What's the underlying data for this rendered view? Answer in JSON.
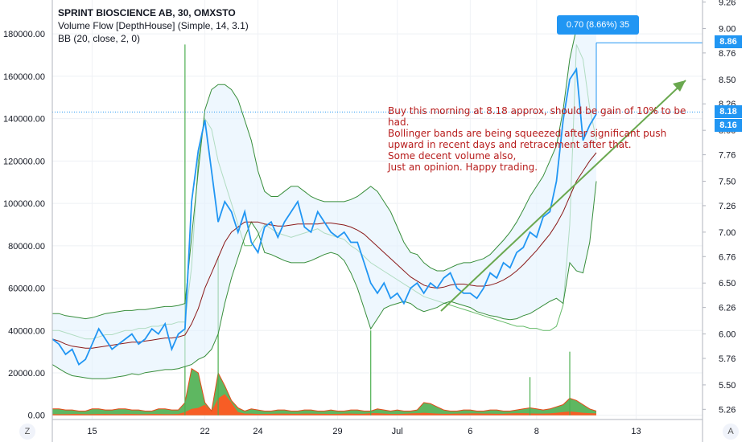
{
  "legend": {
    "title": "SPRINT BIOSCIENCE AB, 30, OMXSTO",
    "line2": "Volume Flow [DepthHouse] (Simple, 14, 3.1)",
    "line3": "BB (20, close, 2, 0)"
  },
  "measure_badge": "0.70 (8.66%) 35",
  "price_tags": {
    "high": "8.86",
    "mid": "8.18",
    "last": "8.16"
  },
  "annotation": "Buy this morning at 8.18 approx, should be gain of 10% to be had.\nBollinger bands are being squeezed after significant push\nupward in recent days and retracement after that.\nSome decent volume also,\nJust an opinion. Happy trading.",
  "corner_buttons": {
    "left": "Z",
    "right": "A"
  },
  "colors": {
    "price": "#2196f3",
    "bb_band": "#388e3c",
    "bb_basis": "#8b1a1a",
    "vol_up": "#4caf50",
    "vol_down": "#ff5722",
    "arrow": "#6aa84f",
    "annot_text": "#b71c1c"
  },
  "chart_data": {
    "type": "line",
    "x_ticks": [
      "15",
      "22",
      "24",
      "29",
      "Jul",
      "6",
      "8",
      "13"
    ],
    "left_axis": {
      "ticks": [
        "0.00",
        "20000.00",
        "40000.00",
        "60000.00",
        "80000.00",
        "100000.00",
        "120000.00",
        "140000.00",
        "160000.00",
        "180000.00"
      ],
      "range": [
        -2000,
        196000
      ]
    },
    "right_axis": {
      "ticks": [
        "5.26",
        "5.50",
        "5.76",
        "6.00",
        "6.26",
        "6.50",
        "6.76",
        "7.00",
        "7.26",
        "7.50",
        "7.76",
        "8.00",
        "8.26",
        "8.50",
        "8.76",
        "9.00",
        "9.26"
      ],
      "range": [
        5.16,
        9.28
      ]
    },
    "series": [
      {
        "name": "",
        "axis": "right",
        "values": [
          5.95,
          5.9,
          5.8,
          5.85,
          5.7,
          5.75,
          5.9,
          6.05,
          5.95,
          5.85,
          5.9,
          5.95,
          6.0,
          5.9,
          5.95,
          6.05,
          6.0,
          6.1,
          5.85,
          6.0,
          6.05,
          7.3,
          7.8,
          8.1,
          7.6,
          7.1,
          7.3,
          7.2,
          7.0,
          7.2,
          6.9,
          6.8,
          7.05,
          7.1,
          6.95,
          7.1,
          7.2,
          7.3,
          7.05,
          7.0,
          7.2,
          7.1,
          7.0,
          6.95,
          7.0,
          6.9,
          6.9,
          6.7,
          6.5,
          6.4,
          6.5,
          6.35,
          6.4,
          6.3,
          6.45,
          6.5,
          6.4,
          6.5,
          6.45,
          6.55,
          6.6,
          6.45,
          6.4,
          6.4,
          6.35,
          6.45,
          6.6,
          6.55,
          6.7,
          6.65,
          6.8,
          6.85,
          7.0,
          6.95,
          7.15,
          7.2,
          7.5,
          8.1,
          8.5,
          8.6,
          7.9,
          8.05,
          8.16
        ]
      },
      {
        "name": "",
        "axis": "right",
        "values": [
          5.95,
          5.93,
          5.9,
          5.88,
          5.87,
          5.86,
          5.86,
          5.87,
          5.88,
          5.89,
          5.9,
          5.91,
          5.92,
          5.92,
          5.93,
          5.94,
          5.95,
          5.96,
          5.96,
          5.97,
          5.99,
          6.1,
          6.25,
          6.45,
          6.6,
          6.75,
          6.9,
          7.0,
          7.05,
          7.1,
          7.1,
          7.1,
          7.08,
          7.07,
          7.06,
          7.06,
          7.07,
          7.08,
          7.08,
          7.08,
          7.08,
          7.09,
          7.09,
          7.08,
          7.07,
          7.05,
          7.02,
          6.98,
          6.92,
          6.86,
          6.8,
          6.74,
          6.68,
          6.62,
          6.56,
          6.52,
          6.48,
          6.46,
          6.45,
          6.46,
          6.48,
          6.49,
          6.49,
          6.48,
          6.47,
          6.47,
          6.48,
          6.5,
          6.53,
          6.57,
          6.62,
          6.68,
          6.75,
          6.82,
          6.9,
          6.98,
          7.08,
          7.2,
          7.35,
          7.5,
          7.6,
          7.7,
          7.78
        ]
      },
      {
        "name": "",
        "axis": "right",
        "values": [
          6.2,
          6.2,
          6.18,
          6.17,
          6.16,
          6.15,
          6.16,
          6.18,
          6.2,
          6.21,
          6.22,
          6.23,
          6.23,
          6.24,
          6.24,
          6.25,
          6.26,
          6.27,
          6.27,
          6.28,
          6.3,
          6.95,
          7.6,
          8.2,
          8.4,
          8.45,
          8.45,
          8.4,
          8.3,
          8.1,
          7.9,
          7.6,
          7.4,
          7.35,
          7.35,
          7.4,
          7.45,
          7.45,
          7.4,
          7.35,
          7.32,
          7.3,
          7.3,
          7.3,
          7.3,
          7.32,
          7.35,
          7.4,
          7.45,
          7.4,
          7.3,
          7.2,
          7.05,
          6.9,
          6.8,
          6.78,
          6.7,
          6.65,
          6.62,
          6.62,
          6.65,
          6.68,
          6.7,
          6.7,
          6.72,
          6.74,
          6.78,
          6.85,
          6.92,
          7.0,
          7.1,
          7.22,
          7.35,
          7.45,
          7.55,
          7.7,
          7.85,
          8.2,
          8.7,
          9.0,
          9.1,
          9.05,
          8.95
        ]
      },
      {
        "name": "",
        "axis": "right",
        "values": [
          5.7,
          5.66,
          5.62,
          5.59,
          5.58,
          5.57,
          5.56,
          5.56,
          5.56,
          5.57,
          5.58,
          5.59,
          5.61,
          5.6,
          5.62,
          5.63,
          5.64,
          5.65,
          5.65,
          5.66,
          5.68,
          5.7,
          5.75,
          5.78,
          5.85,
          6.0,
          6.3,
          6.55,
          6.75,
          6.95,
          7.1,
          7.0,
          6.8,
          6.78,
          6.75,
          6.72,
          6.7,
          6.7,
          6.7,
          6.72,
          6.75,
          6.78,
          6.8,
          6.78,
          6.72,
          6.6,
          6.45,
          6.25,
          6.05,
          6.15,
          6.25,
          6.28,
          6.3,
          6.32,
          6.3,
          6.25,
          6.22,
          6.24,
          6.26,
          6.3,
          6.32,
          6.3,
          6.28,
          6.26,
          6.22,
          6.2,
          6.18,
          6.17,
          6.15,
          6.14,
          6.15,
          6.18,
          6.2,
          6.24,
          6.28,
          6.32,
          6.35,
          6.3,
          6.7,
          6.62,
          6.6,
          6.9,
          7.5
        ]
      },
      {
        "name": "",
        "axis": "left",
        "values": [
          40000,
          40000,
          39000,
          38000,
          37000,
          36000,
          36000,
          37000,
          38000,
          38000,
          39000,
          40000,
          40000,
          41000,
          41000,
          42000,
          42000,
          43000,
          43000,
          44000,
          44000,
          70000,
          120000,
          140000,
          135000,
          120000,
          110000,
          100000,
          90000,
          80000,
          80000,
          85000,
          90000,
          88000,
          86000,
          85000,
          84000,
          85000,
          86000,
          87000,
          88000,
          86000,
          85000,
          84000,
          83000,
          80000,
          78000,
          75000,
          72000,
          70000,
          68000,
          66000,
          64000,
          62000,
          60000,
          58000,
          56000,
          55000,
          54000,
          53000,
          52000,
          51000,
          50000,
          49000,
          48000,
          47000,
          46000,
          45000,
          44000,
          43000,
          42000,
          42000,
          41000,
          41000,
          40000,
          40000,
          42000,
          52000,
          90000,
          175000,
          168000,
          145000,
          130000
        ]
      },
      {
        "name": "",
        "axis": "left",
        "values": [
          3000,
          3000,
          2500,
          2500,
          2000,
          2000,
          3000,
          3000,
          2500,
          2500,
          3000,
          3000,
          2500,
          2500,
          2000,
          2000,
          3000,
          3000,
          2500,
          2500,
          6000,
          22000,
          20000,
          6000,
          2000,
          20000,
          14000,
          7000,
          3500,
          2000,
          3000,
          2500,
          2000,
          2000,
          2500,
          2500,
          2000,
          2000,
          2500,
          2500,
          2000,
          2000,
          2500,
          2000,
          2000,
          2500,
          2500,
          2000,
          2000,
          3000,
          2500,
          2000,
          2500,
          2000,
          2000,
          2500,
          6000,
          5500,
          4000,
          2500,
          2000,
          2000,
          2500,
          2500,
          2000,
          2000,
          2500,
          2500,
          2000,
          2000,
          2500,
          3000,
          3500,
          3000,
          2500,
          3000,
          4000,
          5000,
          8000,
          7000,
          5000,
          3000,
          2000
        ]
      },
      {
        "name": "",
        "axis": "left",
        "values": [
          500,
          500,
          500,
          600,
          600,
          500,
          500,
          600,
          600,
          500,
          500,
          600,
          600,
          500,
          500,
          600,
          600,
          500,
          500,
          600,
          1500,
          3000,
          3500,
          5000,
          1800,
          8000,
          10000,
          6000,
          1500,
          800,
          800,
          600,
          600,
          700,
          800,
          800,
          700,
          700,
          800,
          800,
          700,
          700,
          600,
          600,
          800,
          800,
          700,
          700,
          1000,
          1000,
          800,
          600,
          600,
          700,
          900,
          1000,
          1200,
          1000,
          800,
          700,
          700,
          800,
          800,
          900,
          900,
          800,
          800,
          700,
          700,
          900,
          1000,
          1000,
          900,
          800,
          800,
          900,
          1200,
          1500,
          1800,
          1500,
          1200,
          1000,
          900
        ]
      }
    ]
  }
}
